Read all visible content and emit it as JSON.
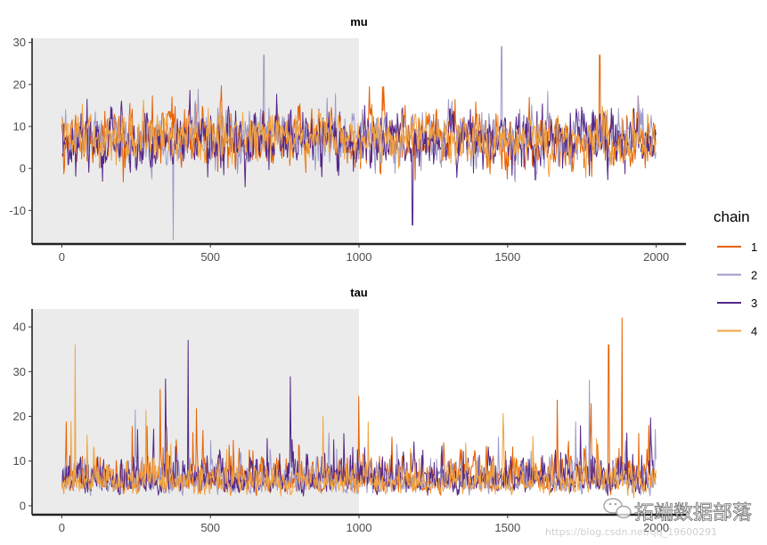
{
  "chart_data": [
    {
      "type": "line",
      "title": "mu",
      "xlabel": "",
      "ylabel": "",
      "xlim": [
        -100,
        2100
      ],
      "ylim": [
        -18,
        31
      ],
      "x_ticks": [
        0,
        500,
        1000,
        1500,
        2000
      ],
      "y_ticks": [
        -10,
        0,
        10,
        20,
        30
      ],
      "warmup_region": [
        0,
        1000
      ],
      "series": [
        {
          "name": "1",
          "color": "#e66101",
          "center": 7,
          "spread": 5.5,
          "seed": 11
        },
        {
          "name": "2",
          "color": "#9e9ac8",
          "center": 7,
          "spread": 5.0,
          "seed": 23
        },
        {
          "name": "3",
          "color": "#542788",
          "center": 7,
          "spread": 5.5,
          "seed": 37
        },
        {
          "name": "4",
          "color": "#f1a340",
          "center": 7,
          "spread": 4.5,
          "seed": 51
        }
      ],
      "notable_points": [
        {
          "series": "2",
          "x": 375,
          "y": -17
        },
        {
          "series": "2",
          "x": 1480,
          "y": 29
        },
        {
          "series": "3",
          "x": 1180,
          "y": -13.5
        },
        {
          "series": "1",
          "x": 1810,
          "y": 27
        },
        {
          "series": "2",
          "x": 680,
          "y": 27
        }
      ]
    },
    {
      "type": "line",
      "title": "tau",
      "xlabel": "",
      "ylabel": "",
      "xlim": [
        -100,
        2100
      ],
      "ylim": [
        -2,
        44
      ],
      "x_ticks": [
        0,
        500,
        1000,
        1500,
        2000
      ],
      "y_ticks": [
        0,
        10,
        20,
        30,
        40
      ],
      "warmup_region": [
        0,
        1000
      ],
      "series": [
        {
          "name": "1",
          "color": "#e66101",
          "center": 6,
          "spread": 5.5,
          "seed": 71
        },
        {
          "name": "2",
          "color": "#9e9ac8",
          "center": 6,
          "spread": 5.0,
          "seed": 83
        },
        {
          "name": "3",
          "color": "#542788",
          "center": 6,
          "spread": 5.5,
          "seed": 97
        },
        {
          "name": "4",
          "color": "#f1a340",
          "center": 6,
          "spread": 4.5,
          "seed": 113
        }
      ],
      "notable_points": [
        {
          "series": "1",
          "x": 1885,
          "y": 42
        },
        {
          "series": "3",
          "x": 425,
          "y": 37
        },
        {
          "series": "4",
          "x": 45,
          "y": 36
        },
        {
          "series": "1",
          "x": 1840,
          "y": 36
        }
      ]
    }
  ],
  "legend": {
    "title": "chain",
    "items": [
      {
        "label": "1",
        "color": "#e66101"
      },
      {
        "label": "2",
        "color": "#9e9ac8"
      },
      {
        "label": "3",
        "color": "#542788"
      },
      {
        "label": "4",
        "color": "#f1a340"
      }
    ]
  },
  "watermark": {
    "brand": "拓端数据部落",
    "url": "https://blog.csdn.net/qq_19600291"
  },
  "colors": {
    "warmup_fill": "#ebebeb",
    "axis": "#222222",
    "tick_text": "#4d4d4d"
  }
}
